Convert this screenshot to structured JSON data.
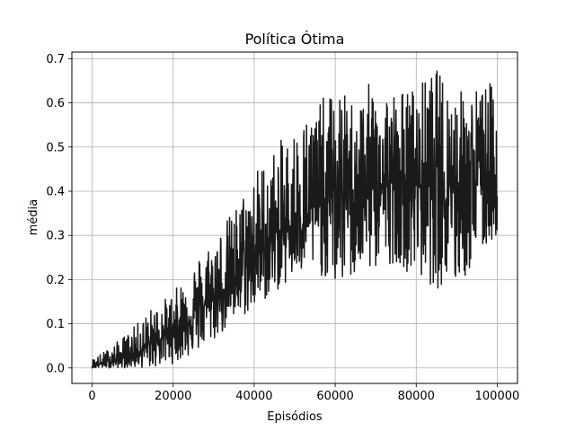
{
  "chart_data": {
    "type": "line",
    "title": "Política Ótima",
    "xlabel": "Episódios",
    "ylabel": "média",
    "xlim": [
      -5000,
      105000
    ],
    "ylim": [
      -0.035,
      0.715
    ],
    "xticks": [
      0,
      20000,
      40000,
      60000,
      80000,
      100000
    ],
    "xtick_labels": [
      "0",
      "20000",
      "40000",
      "60000",
      "80000",
      "100000"
    ],
    "yticks": [
      0.0,
      0.1,
      0.2,
      0.3,
      0.4,
      0.5,
      0.6,
      0.7
    ],
    "ytick_labels": [
      "0.0",
      "0.1",
      "0.2",
      "0.3",
      "0.4",
      "0.5",
      "0.6",
      "0.7"
    ],
    "grid": true,
    "line_color": "#1a1a1a",
    "grid_color": "#b0b0b0",
    "series": [
      {
        "x": [
          0,
          5000,
          10000,
          15000,
          20000,
          25000,
          30000,
          35000,
          40000,
          45000,
          50000,
          55000,
          60000,
          65000,
          70000,
          75000,
          80000,
          85000,
          90000,
          95000,
          100000
        ],
        "y": [
          0.005,
          0.015,
          0.03,
          0.055,
          0.085,
          0.12,
          0.16,
          0.2,
          0.25,
          0.29,
          0.33,
          0.36,
          0.39,
          0.4,
          0.41,
          0.415,
          0.42,
          0.42,
          0.425,
          0.425,
          0.43
        ],
        "y_min": [
          0.0,
          0.0,
          0.0,
          0.0,
          0.01,
          0.03,
          0.06,
          0.1,
          0.13,
          0.17,
          0.2,
          0.22,
          0.18,
          0.2,
          0.22,
          0.24,
          0.2,
          0.18,
          0.17,
          0.24,
          0.3
        ],
        "y_max": [
          0.02,
          0.05,
          0.09,
          0.14,
          0.17,
          0.24,
          0.3,
          0.36,
          0.45,
          0.5,
          0.55,
          0.6,
          0.63,
          0.61,
          0.66,
          0.63,
          0.64,
          0.68,
          0.63,
          0.64,
          0.65
        ]
      }
    ]
  }
}
